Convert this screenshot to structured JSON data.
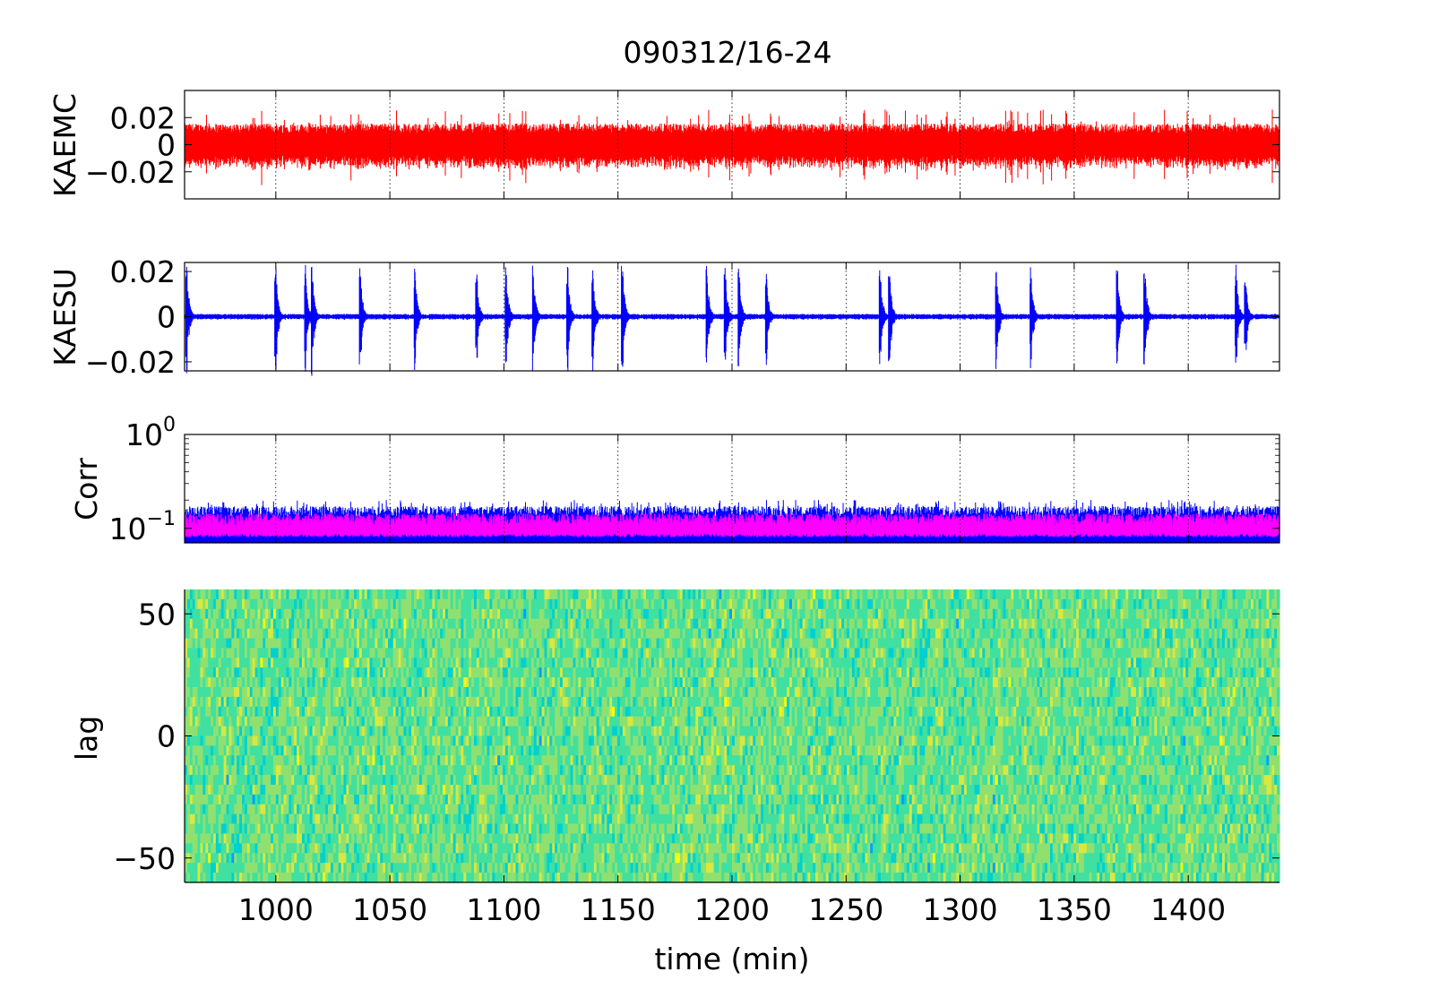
{
  "title": "090312/16-24",
  "chart_data": [
    {
      "type": "line",
      "ylabel": "KAEMC",
      "xlim": [
        960,
        1440
      ],
      "ylim": [
        -0.04,
        0.04
      ],
      "yticks": [
        -0.02,
        0,
        0.02
      ],
      "ytick_labels": [
        "−0.02",
        "0",
        "0.02"
      ],
      "grid": true,
      "series": [
        {
          "color": "#ff0000",
          "amplitude": 0.012,
          "peak": 0.02
        }
      ]
    },
    {
      "type": "line",
      "ylabel": "KAESU",
      "xlim": [
        960,
        1440
      ],
      "ylim": [
        -0.024,
        0.024
      ],
      "yticks": [
        -0.02,
        0,
        0.02
      ],
      "ytick_labels": [
        "−0.02",
        "0",
        "0.02"
      ],
      "grid": true,
      "bursts_at_min": [
        961,
        1000,
        1013,
        1016,
        1037,
        1061,
        1088,
        1101,
        1113,
        1128,
        1139,
        1152,
        1189,
        1197,
        1203,
        1215,
        1265,
        1269,
        1316,
        1331,
        1369,
        1381,
        1421,
        1425
      ],
      "series": [
        {
          "color": "#0000ff"
        }
      ]
    },
    {
      "type": "line",
      "ylabel": "Corr",
      "yscale": "log",
      "xlim": [
        960,
        1440
      ],
      "ylim": [
        0.07,
        1
      ],
      "yticks": [
        0.1,
        1
      ],
      "ytick_labels": [
        {
          "base": "10",
          "exp": "−1"
        },
        {
          "base": "10",
          "exp": "0"
        }
      ],
      "grid": true,
      "series": [
        {
          "color": "#0000ff",
          "range": [
            0.07,
            0.15
          ]
        },
        {
          "color": "#ff00ff",
          "range": [
            0.085,
            0.125
          ]
        }
      ]
    },
    {
      "type": "heatmap",
      "ylabel": "lag",
      "xlabel": "time (min)",
      "xlim": [
        960,
        1440
      ],
      "ylim": [
        -60,
        60
      ],
      "yticks": [
        -50,
        0,
        50
      ],
      "ytick_labels": [
        "−50",
        "0",
        "50"
      ],
      "xticks": [
        1000,
        1050,
        1100,
        1150,
        1200,
        1250,
        1300,
        1350,
        1400
      ],
      "xtick_labels": [
        "1000",
        "1050",
        "1100",
        "1150",
        "1200",
        "1250",
        "1300",
        "1350",
        "1400"
      ],
      "colormap": [
        "#00a0ff",
        "#00d0d0",
        "#40e0a0",
        "#90e070",
        "#d8e840",
        "#ffff00"
      ]
    }
  ]
}
